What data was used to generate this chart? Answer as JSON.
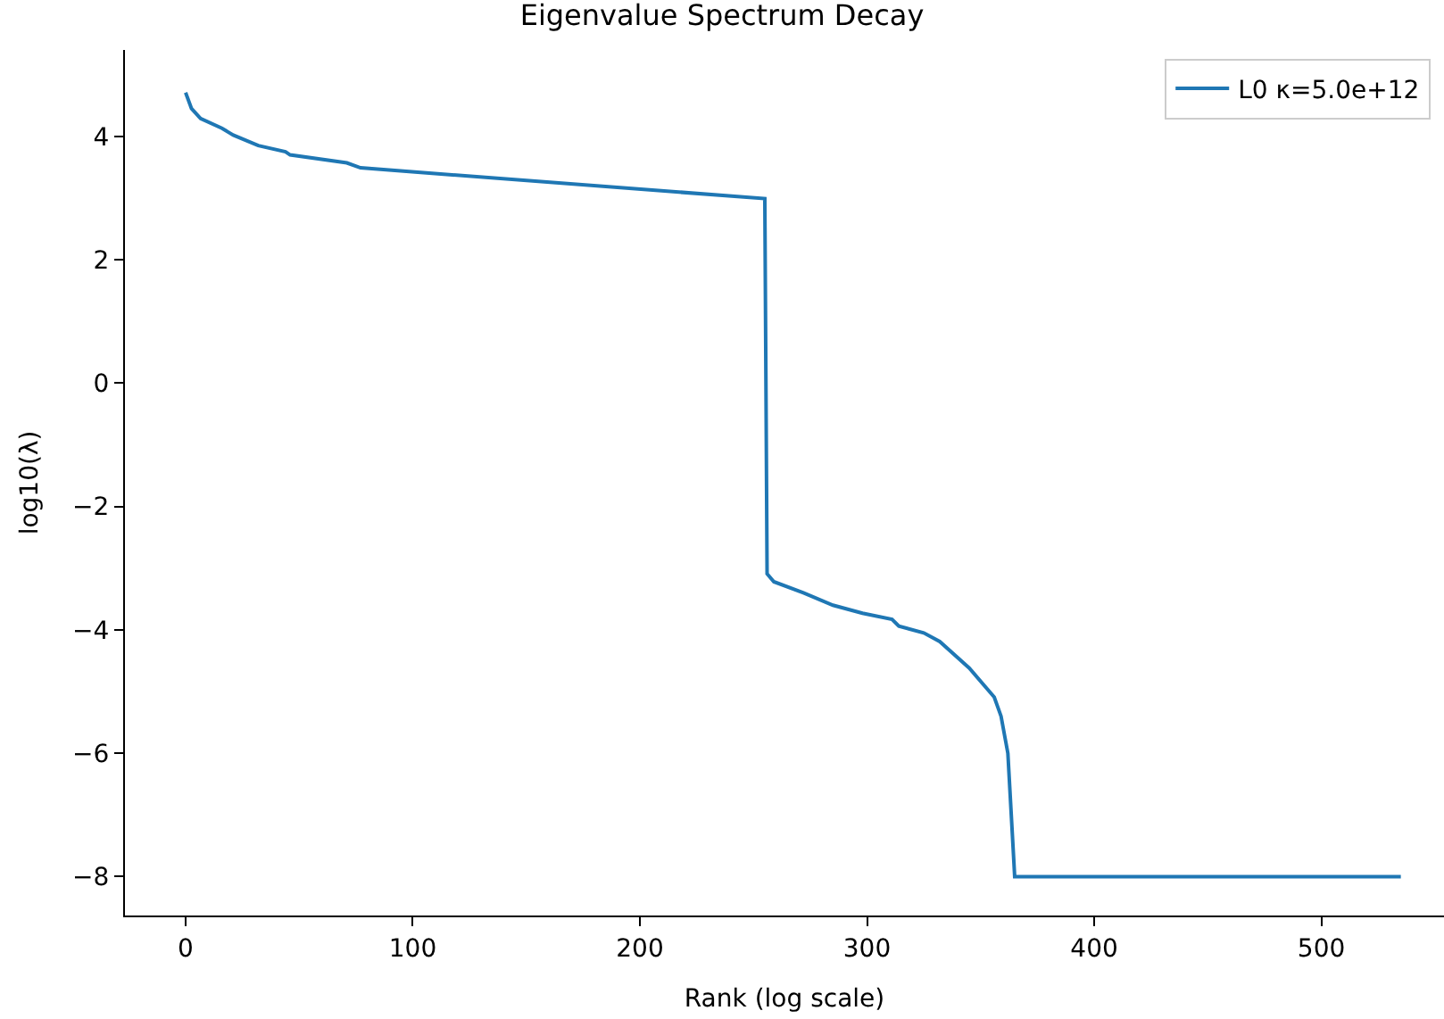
{
  "chart_data": {
    "type": "line",
    "title": "Eigenvalue Spectrum Decay",
    "xlabel": "Rank (log scale)",
    "ylabel": "log10(λ)",
    "x": [
      0,
      2.6,
      6.6,
      16,
      21,
      32,
      44,
      46,
      71,
      77,
      255,
      256,
      259,
      272,
      285,
      298,
      311,
      314,
      325,
      332,
      345,
      356,
      359,
      362,
      365,
      535
    ],
    "series": [
      {
        "name": "L0 κ=5.0e+12",
        "color": "#1f77b4",
        "values": [
          4.71,
          4.45,
          4.29,
          4.13,
          4.02,
          3.85,
          3.75,
          3.7,
          3.57,
          3.49,
          2.99,
          -3.09,
          -3.22,
          -3.4,
          -3.6,
          -3.73,
          -3.83,
          -3.94,
          -4.05,
          -4.19,
          -4.62,
          -5.09,
          -5.4,
          -6.0,
          -8.0,
          -8.0
        ]
      }
    ],
    "xlim": [
      -26.7,
      554
    ],
    "ylim": [
      -8.63,
      5.4
    ],
    "xticks": [
      0,
      100,
      200,
      300,
      400,
      500
    ],
    "yticks": [
      {
        "value": -8,
        "label": "−8"
      },
      {
        "value": -6,
        "label": "−6"
      },
      {
        "value": -4,
        "label": "−4"
      },
      {
        "value": -2,
        "label": "−2"
      },
      0,
      2,
      4
    ],
    "legend": "top right",
    "marker": "none",
    "line_style": "solid"
  }
}
